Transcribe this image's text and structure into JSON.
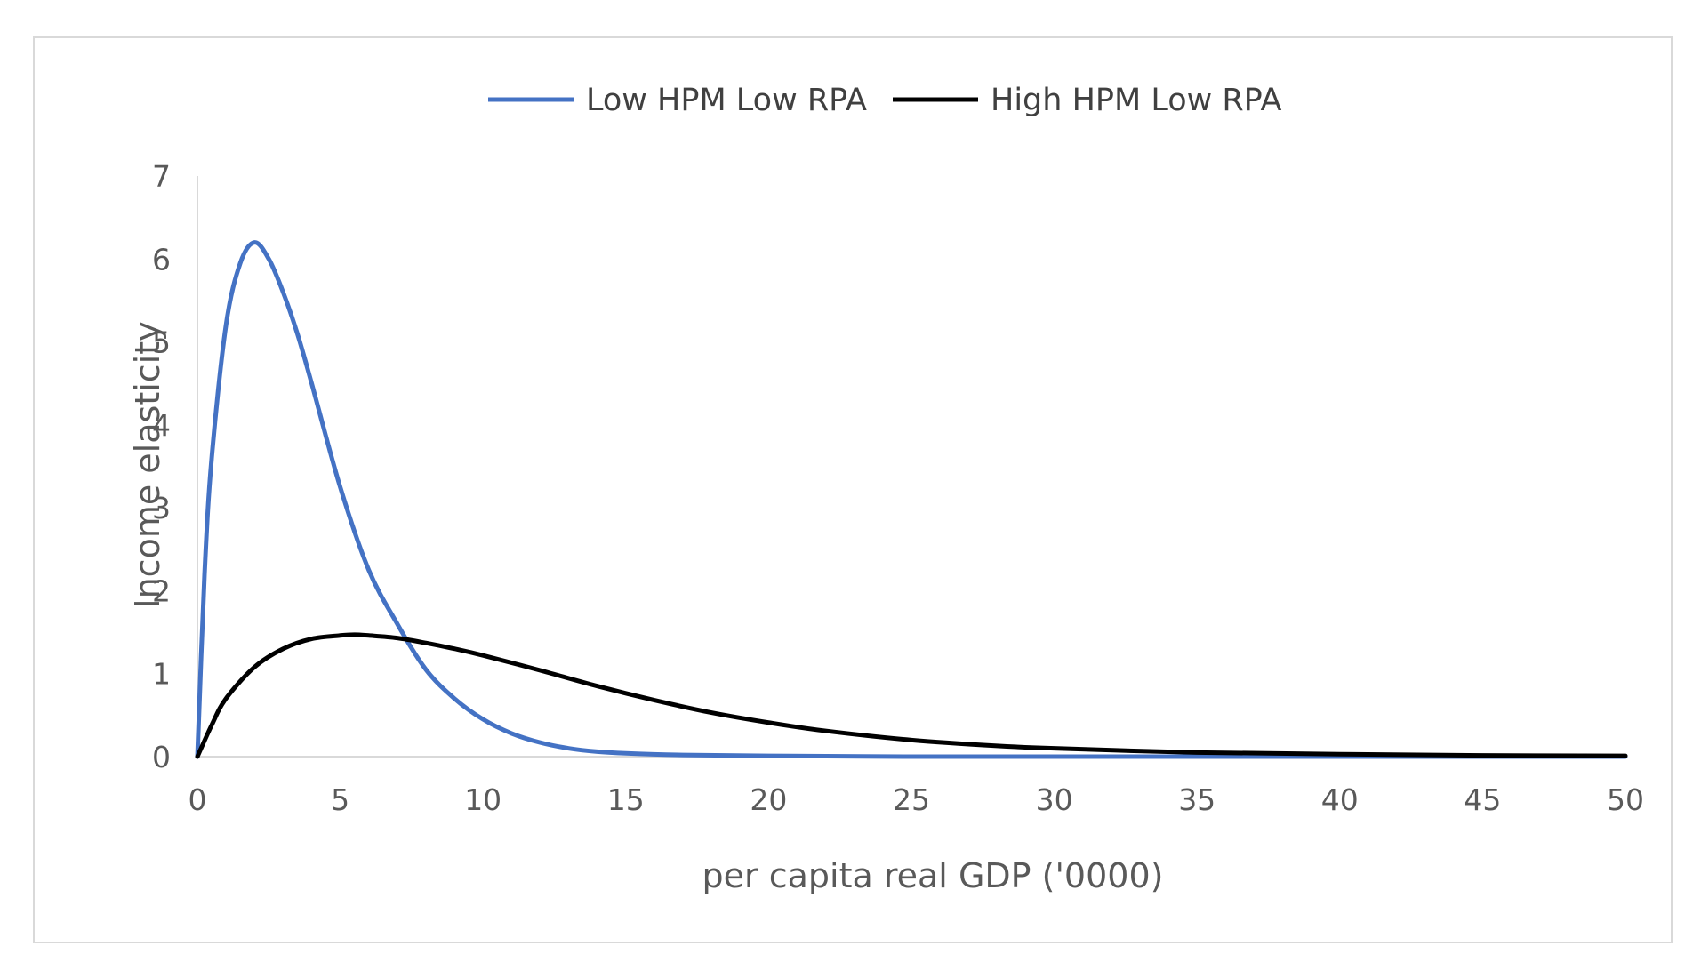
{
  "chart_data": {
    "type": "line",
    "title": "",
    "xlabel": "per capita real GDP ('0000)",
    "ylabel": "Income elasticity",
    "xlim": [
      0,
      50
    ],
    "ylim": [
      0,
      7
    ],
    "xticks": [
      0,
      5,
      10,
      15,
      20,
      25,
      30,
      35,
      40,
      45,
      50
    ],
    "yticks": [
      0,
      1,
      2,
      3,
      4,
      5,
      6,
      7
    ],
    "xtick_labels": [
      "0",
      "5",
      "10",
      "15",
      "20",
      "25",
      "30",
      "35",
      "40",
      "45",
      "50"
    ],
    "ytick_labels": [
      "0",
      "1",
      "2",
      "3",
      "4",
      "5",
      "6",
      "7"
    ],
    "grid": false,
    "legend_position": "top",
    "series": [
      {
        "name": "Low HPM Low RPA",
        "color": "#4472c4",
        "x": [
          0,
          0.25,
          0.5,
          1,
          1.5,
          2,
          2.5,
          3,
          3.5,
          4,
          5,
          6,
          7,
          8,
          9,
          10,
          11,
          12,
          13,
          14,
          15,
          17,
          20,
          25,
          30,
          40,
          50
        ],
        "y": [
          0,
          2.2,
          3.6,
          5.2,
          5.95,
          6.2,
          6.0,
          5.6,
          5.1,
          4.5,
          3.25,
          2.25,
          1.6,
          1.05,
          0.7,
          0.45,
          0.28,
          0.17,
          0.1,
          0.06,
          0.04,
          0.02,
          0.01,
          0.0,
          0.0,
          0.0,
          0.0
        ]
      },
      {
        "name": "High HPM Low RPA",
        "color": "#000000",
        "x": [
          0,
          0.5,
          1,
          2,
          3,
          4,
          5,
          5.5,
          6,
          7,
          8,
          9,
          10,
          12,
          14,
          16,
          18,
          20,
          22,
          25,
          28,
          30,
          35,
          40,
          45,
          50
        ],
        "y": [
          0,
          0.38,
          0.7,
          1.08,
          1.3,
          1.42,
          1.46,
          1.47,
          1.46,
          1.43,
          1.37,
          1.3,
          1.22,
          1.04,
          0.85,
          0.68,
          0.53,
          0.41,
          0.31,
          0.2,
          0.13,
          0.1,
          0.05,
          0.03,
          0.015,
          0.01
        ]
      }
    ]
  }
}
